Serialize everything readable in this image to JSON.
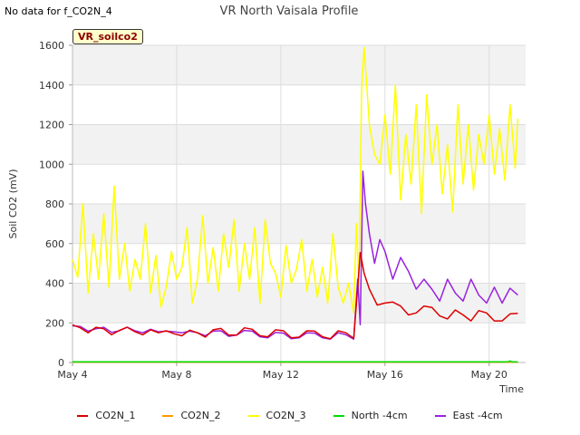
{
  "no_data_note": "No data for f_CO2N_4",
  "site_badge": "VR_soilco2",
  "chart_data": {
    "type": "line",
    "title": "VR North Vaisala Profile",
    "xlabel": "Time",
    "ylabel": "Soil CO2 (mV)",
    "xlim": [
      0,
      17.4
    ],
    "ylim": [
      0,
      1600
    ],
    "x_tick_values": [
      0,
      4,
      8,
      12,
      16
    ],
    "x_tick_labels": [
      "May 4",
      "May 8",
      "May 12",
      "May 16",
      "May 20"
    ],
    "y_ticks": [
      0,
      200,
      400,
      600,
      800,
      1000,
      1200,
      1400,
      1600
    ],
    "grid": true,
    "legend_position": "bottom",
    "series": [
      {
        "name": "CO2N_1",
        "color": "#dd0000",
        "x": [
          0.0,
          0.3,
          0.6,
          0.9,
          1.2,
          1.5,
          1.8,
          2.1,
          2.4,
          2.7,
          3.0,
          3.3,
          3.6,
          3.9,
          4.2,
          4.5,
          4.8,
          5.1,
          5.4,
          5.7,
          6.0,
          6.3,
          6.6,
          6.9,
          7.2,
          7.5,
          7.8,
          8.1,
          8.4,
          8.7,
          9.0,
          9.3,
          9.6,
          9.9,
          10.2,
          10.5,
          10.8,
          10.95,
          11.05,
          11.2,
          11.4,
          11.7,
          12.0,
          12.3,
          12.6,
          12.9,
          13.2,
          13.5,
          13.8,
          14.1,
          14.4,
          14.7,
          15.0,
          15.3,
          15.6,
          15.9,
          16.2,
          16.5,
          16.8,
          17.1
        ],
        "values": [
          190,
          175,
          150,
          178,
          170,
          140,
          162,
          178,
          155,
          140,
          165,
          150,
          160,
          145,
          135,
          163,
          150,
          128,
          165,
          172,
          138,
          138,
          175,
          168,
          135,
          130,
          165,
          160,
          125,
          128,
          160,
          158,
          130,
          120,
          160,
          150,
          122,
          380,
          555,
          450,
          370,
          290,
          300,
          305,
          285,
          240,
          250,
          285,
          278,
          235,
          220,
          265,
          240,
          210,
          262,
          250,
          210,
          210,
          245,
          248
        ]
      },
      {
        "name": "CO2N_2",
        "color": "#ff9900",
        "x": [
          0.0,
          17.1
        ],
        "values": [
          2,
          2
        ]
      },
      {
        "name": "CO2N_3",
        "color": "#ffff00",
        "x": [
          0.0,
          0.2,
          0.4,
          0.6,
          0.8,
          1.0,
          1.2,
          1.4,
          1.6,
          1.8,
          2.0,
          2.2,
          2.4,
          2.6,
          2.8,
          3.0,
          3.2,
          3.4,
          3.6,
          3.8,
          4.0,
          4.2,
          4.4,
          4.6,
          4.8,
          5.0,
          5.2,
          5.4,
          5.6,
          5.8,
          6.0,
          6.2,
          6.4,
          6.6,
          6.8,
          7.0,
          7.2,
          7.4,
          7.6,
          7.8,
          8.0,
          8.2,
          8.4,
          8.6,
          8.8,
          9.0,
          9.2,
          9.4,
          9.6,
          9.8,
          10.0,
          10.2,
          10.4,
          10.6,
          10.8,
          10.9,
          11.0,
          11.1,
          11.2,
          11.4,
          11.6,
          11.8,
          12.0,
          12.2,
          12.4,
          12.6,
          12.8,
          13.0,
          13.2,
          13.4,
          13.6,
          13.8,
          14.0,
          14.2,
          14.4,
          14.6,
          14.8,
          15.0,
          15.2,
          15.4,
          15.6,
          15.8,
          16.0,
          16.2,
          16.4,
          16.6,
          16.8,
          17.0,
          17.1
        ],
        "values": [
          520,
          430,
          800,
          350,
          650,
          420,
          750,
          380,
          890,
          420,
          600,
          360,
          520,
          420,
          700,
          350,
          540,
          280,
          380,
          560,
          420,
          480,
          680,
          300,
          420,
          740,
          400,
          580,
          360,
          650,
          480,
          720,
          360,
          600,
          420,
          680,
          300,
          720,
          500,
          450,
          330,
          590,
          400,
          470,
          620,
          360,
          520,
          330,
          480,
          300,
          650,
          380,
          300,
          400,
          250,
          700,
          380,
          1380,
          1590,
          1200,
          1050,
          1000,
          1250,
          950,
          1400,
          820,
          1150,
          900,
          1300,
          750,
          1350,
          1000,
          1200,
          850,
          1100,
          760,
          1300,
          900,
          1200,
          870,
          1150,
          1000,
          1250,
          950,
          1180,
          920,
          1300,
          980,
          1230
        ]
      },
      {
        "name": "North -4cm",
        "color": "#00dd00",
        "x": [
          0.0,
          16.7,
          16.8,
          16.9,
          17.1
        ],
        "values": [
          3,
          3,
          8,
          3,
          3
        ]
      },
      {
        "name": "East -4cm",
        "color": "#9922dd",
        "x": [
          0.0,
          0.3,
          0.6,
          0.9,
          1.2,
          1.5,
          1.8,
          2.1,
          2.4,
          2.7,
          3.0,
          3.3,
          3.6,
          3.9,
          4.2,
          4.5,
          4.8,
          5.1,
          5.4,
          5.7,
          6.0,
          6.3,
          6.6,
          6.9,
          7.2,
          7.5,
          7.8,
          8.1,
          8.4,
          8.7,
          9.0,
          9.3,
          9.6,
          9.9,
          10.2,
          10.5,
          10.8,
          10.95,
          11.05,
          11.15,
          11.25,
          11.4,
          11.6,
          11.8,
          12.0,
          12.3,
          12.6,
          12.9,
          13.2,
          13.5,
          13.8,
          14.1,
          14.4,
          14.7,
          15.0,
          15.3,
          15.6,
          15.9,
          16.2,
          16.5,
          16.8,
          17.1
        ],
        "values": [
          185,
          182,
          158,
          170,
          178,
          152,
          160,
          178,
          160,
          150,
          168,
          155,
          158,
          155,
          150,
          158,
          150,
          135,
          158,
          160,
          132,
          138,
          162,
          158,
          130,
          125,
          152,
          148,
          120,
          125,
          150,
          148,
          125,
          118,
          150,
          140,
          118,
          420,
          190,
          965,
          800,
          650,
          500,
          620,
          560,
          420,
          530,
          460,
          370,
          420,
          370,
          310,
          420,
          350,
          310,
          420,
          340,
          300,
          380,
          300,
          375,
          340
        ]
      }
    ]
  }
}
